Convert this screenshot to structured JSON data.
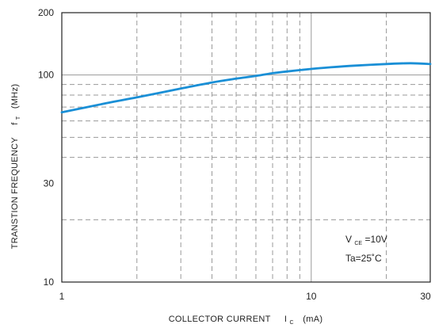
{
  "chart_data": {
    "type": "line",
    "title": "",
    "x_scale": "log",
    "y_scale": "log",
    "xlim": [
      1,
      30
    ],
    "ylim": [
      10,
      200
    ],
    "x_ticks": [
      {
        "value": 1,
        "label": "1"
      },
      {
        "value": 10,
        "label": "10"
      },
      {
        "value": 30,
        "label": "30"
      }
    ],
    "y_ticks": [
      {
        "value": 10,
        "label": "10"
      },
      {
        "value": 30,
        "label": "30"
      },
      {
        "value": 100,
        "label": "100"
      },
      {
        "value": 200,
        "label": "200"
      }
    ],
    "x_dashed_grid": [
      2,
      3,
      4,
      5,
      6,
      7,
      8,
      9,
      20
    ],
    "x_solid_grid": [
      10
    ],
    "y_dashed_grid": [
      20,
      40,
      50,
      60,
      70,
      80,
      90
    ],
    "y_solid_grid": [
      100
    ],
    "xlabel": {
      "main": "COLLECTOR CURRENT",
      "symbol": "I",
      "subscript": "C",
      "unit": "(mA)"
    },
    "ylabel": {
      "main": "TRANSTION FREQUENCY",
      "symbol": "f",
      "subscript": "T",
      "unit": "(MHz)"
    },
    "annotation": {
      "vce_symbol": "V",
      "vce_sub": "CE",
      "vce_value": "=10V",
      "ta_text": "Ta=25˚C"
    },
    "series_color": "#1a8fd6",
    "series": [
      {
        "x": [
          1,
          1.5,
          2,
          3,
          4,
          5,
          6,
          7,
          8,
          10,
          12,
          15,
          20,
          25,
          30
        ],
        "y": [
          66,
          73,
          78,
          86,
          92,
          96,
          99,
          102,
          104,
          107,
          109,
          111,
          113,
          114,
          113
        ]
      }
    ]
  }
}
